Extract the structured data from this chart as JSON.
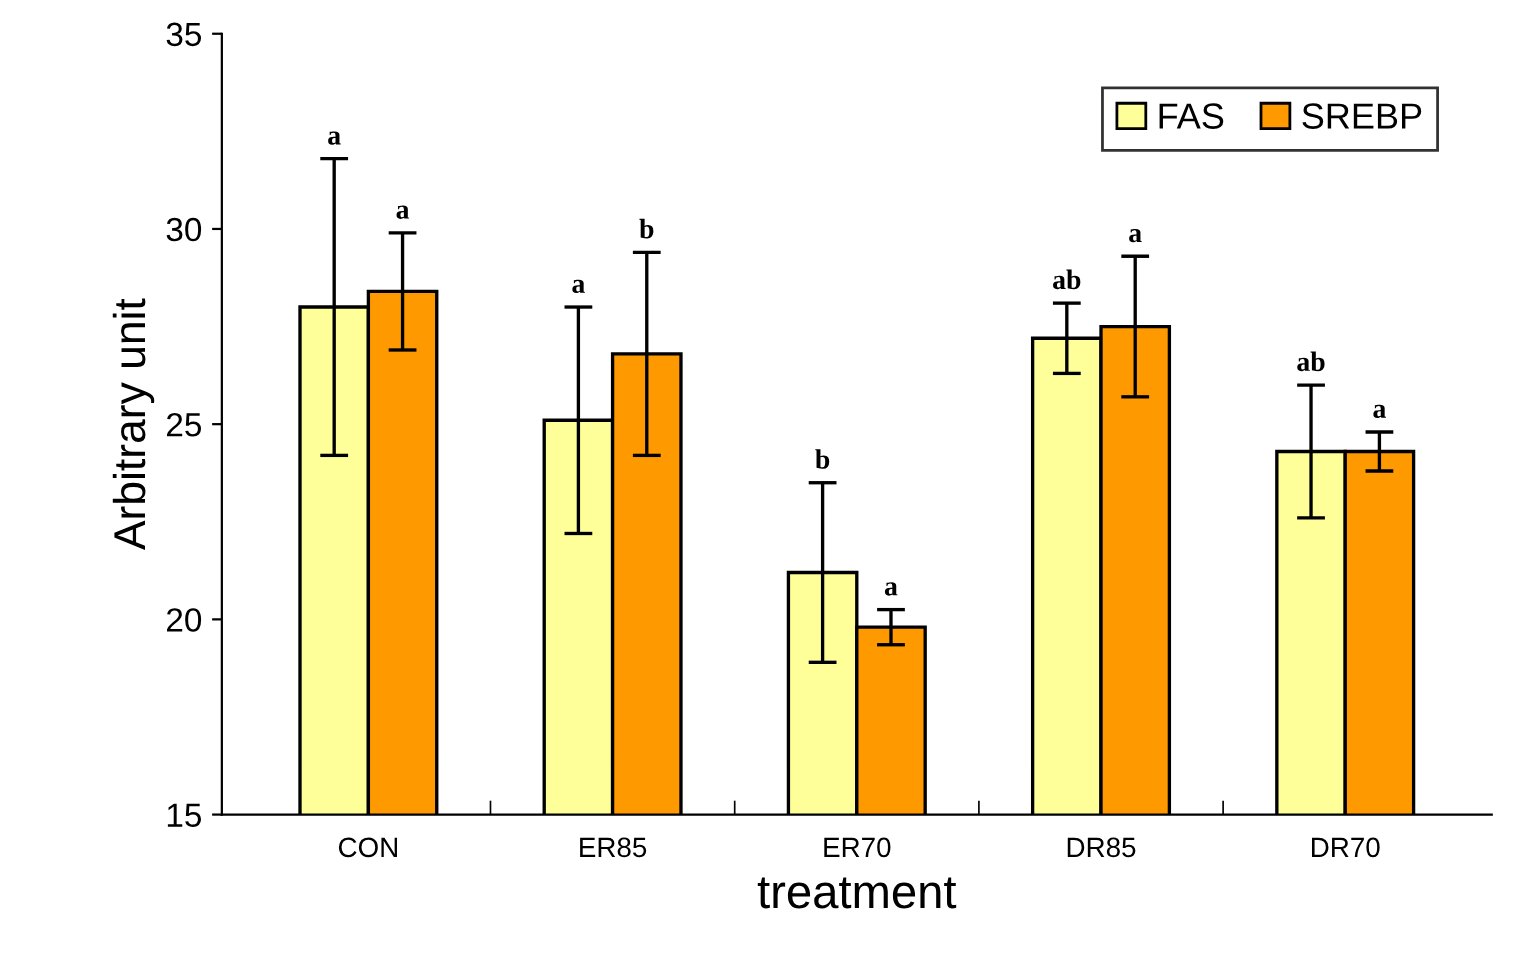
{
  "chart_data": {
    "type": "bar",
    "xlabel": "treatment",
    "ylabel": "Arbitrary unit",
    "categories": [
      "CON",
      "ER85",
      "ER70",
      "DR85",
      "DR70"
    ],
    "series": [
      {
        "name": "FAS",
        "color": "#ffff99",
        "values": [
          28.0,
          25.1,
          21.2,
          27.2,
          24.3
        ],
        "errors": [
          3.8,
          2.9,
          2.3,
          0.9,
          1.7
        ]
      },
      {
        "name": "SREBP",
        "color": "#ff9900",
        "values": [
          28.4,
          26.8,
          19.8,
          27.5,
          24.3
        ],
        "errors": [
          1.5,
          2.6,
          0.45,
          1.8,
          0.5
        ]
      }
    ],
    "ylim": [
      15,
      35
    ],
    "yticks": [
      15,
      20,
      25,
      30,
      35
    ],
    "grid": false,
    "legend": "top right",
    "annotations": [
      "a",
      "a",
      "a",
      "b",
      "b",
      "a",
      "ab",
      "a",
      "ab",
      "a"
    ]
  }
}
